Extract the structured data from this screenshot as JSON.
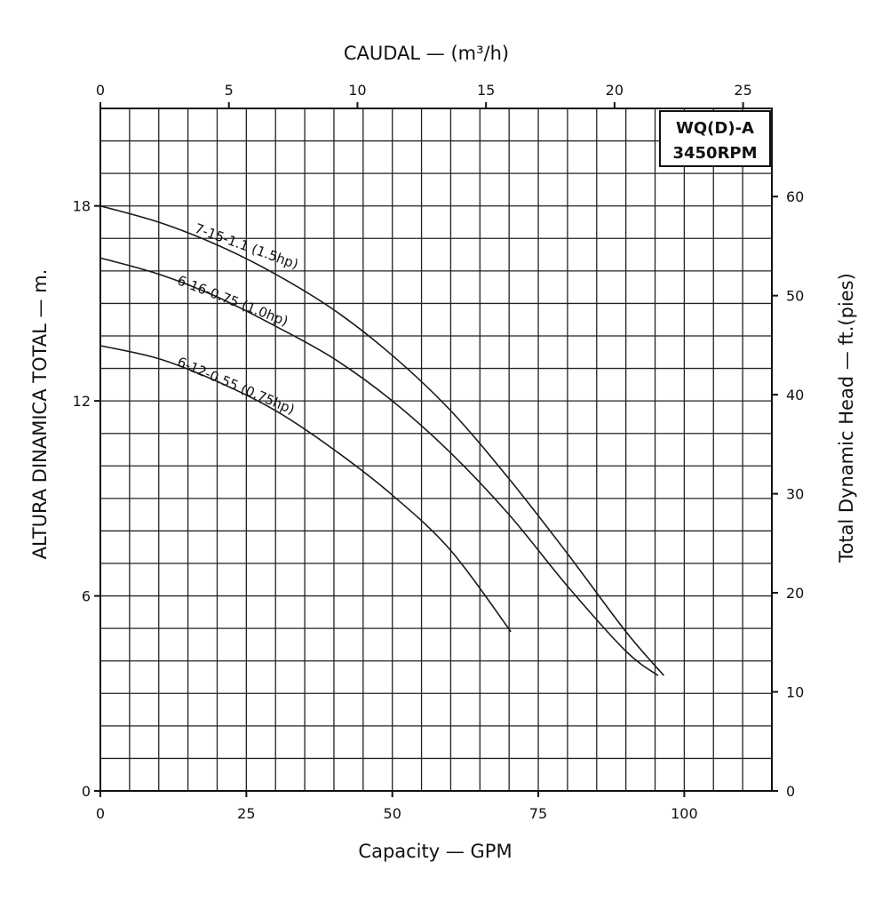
{
  "chart_data": {
    "type": "line",
    "title": "",
    "badge": [
      "WQ(D)-A",
      "3450RPM"
    ],
    "x_bottom": {
      "label": "Capacity — GPM",
      "range": [
        0,
        115
      ],
      "ticks": [
        0,
        25,
        50,
        75,
        100
      ],
      "unit": "GPM"
    },
    "x_top": {
      "label": "CAUDAL — (m³/h)",
      "range": [
        0,
        26.12
      ],
      "ticks": [
        0,
        5,
        10,
        15,
        20,
        25
      ],
      "unit": "m³/h"
    },
    "y_left": {
      "label": "ALTURA DINAMICA TOTAL — m.",
      "range": [
        0,
        21
      ],
      "ticks": [
        0,
        6,
        12,
        18
      ],
      "unit": "m"
    },
    "y_right": {
      "label": "Total Dynamic Head — ft.(pies)",
      "range": [
        0,
        68.9
      ],
      "ticks": [
        0,
        10,
        20,
        30,
        40,
        50,
        60
      ],
      "unit": "ft"
    },
    "grid": true,
    "series": [
      {
        "name": "7-15-1.1 (1.5hp)",
        "x": [
          0,
          10,
          20,
          30,
          40,
          50,
          60,
          70,
          80,
          90,
          96.5
        ],
        "y": [
          18.0,
          17.5,
          16.8,
          15.9,
          14.8,
          13.4,
          11.7,
          9.6,
          7.3,
          4.9,
          3.55
        ]
      },
      {
        "name": "6-16-0.75 (1.0hp)",
        "x": [
          0,
          10,
          20,
          30,
          40,
          50,
          60,
          70,
          80,
          90,
          95.5
        ],
        "y": [
          16.4,
          15.9,
          15.2,
          14.3,
          13.3,
          12.0,
          10.4,
          8.5,
          6.3,
          4.3,
          3.55
        ]
      },
      {
        "name": "6-12-0.55 (0.75hp)",
        "x": [
          0,
          10,
          20,
          30,
          40,
          50,
          60,
          70.3
        ],
        "y": [
          13.7,
          13.3,
          12.6,
          11.7,
          10.5,
          9.1,
          7.4,
          4.9
        ]
      }
    ]
  }
}
